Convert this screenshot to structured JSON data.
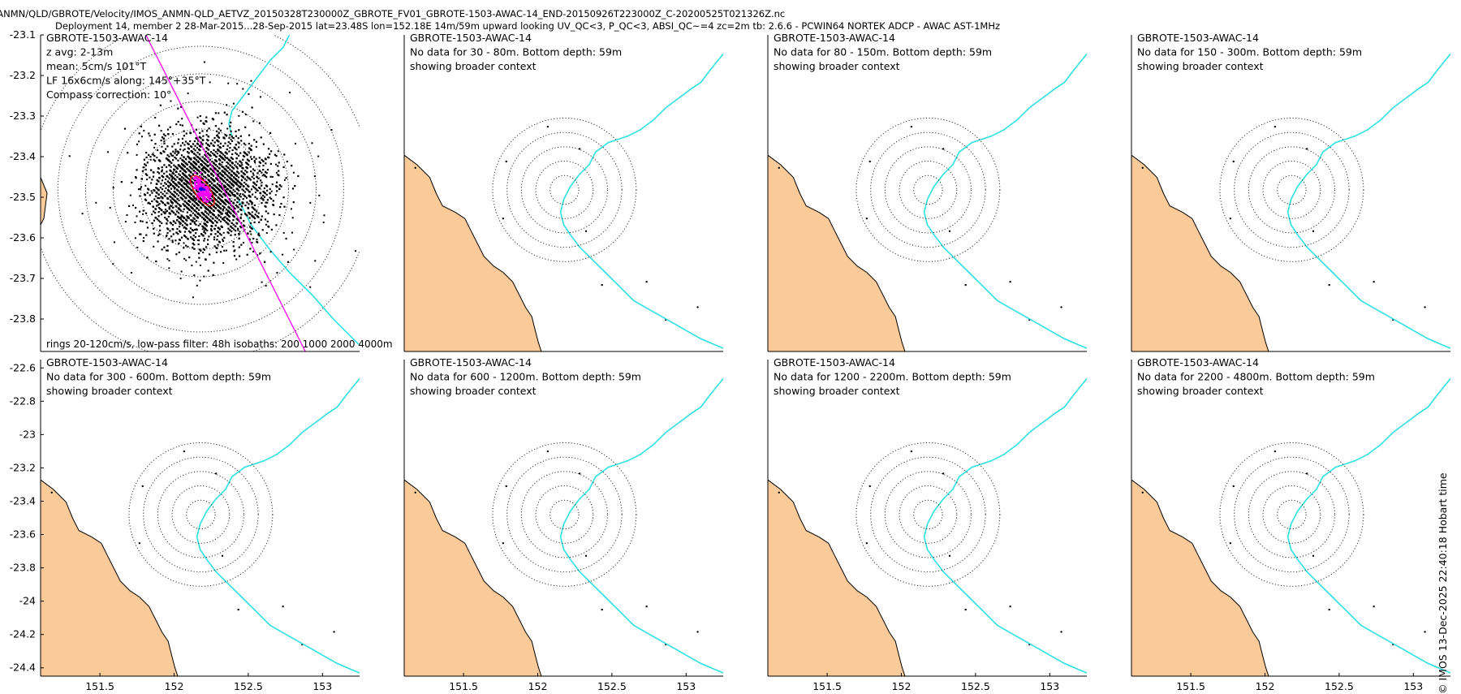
{
  "header": {
    "line1": "IMOS/ANMN/QLD/GBROTE/Velocity/IMOS_ANMN-QLD_AETVZ_20150328T230000Z_GBROTE_FV01_GBROTE-1503-AWAC-14_END-20150926T223000Z_C-20200525T021326Z.nc",
    "line2": "Deployment 14, member 2 28-Mar-2015...28-Sep-2015 lat=23.48S lon=152.18E 14m/59m upward looking UV_QC<3, P_QC<3, ABSI_QC~=4 zc=2m tb: 2.6.6 - PCWIN64 NORTEK ADCP - AWAC AST-1MHz"
  },
  "footer": "© IMOS 13-Dec-2025 22:40:18 Hobart time",
  "colors": {
    "land": "#FACB98",
    "isobath": "#2DE1E1",
    "scatter": "#000000",
    "lowpass": "#FF00FF",
    "axis_line": "#FF00FF",
    "ellipse": "#FF0000",
    "mean": "#0000FF"
  },
  "chart_data": [
    {
      "type": "scatter",
      "title": "GBROTE-1503-AWAC-14",
      "annotations": [
        "z avg: 2-13m",
        "mean: 5cm/s  101°T",
        "LF 16x6cm/s along: 145°+35°T",
        "Compass correction: 10°"
      ],
      "bottom_note": "rings 20-120cm/s, low-pass filter: 48h isobaths: 200 1000 2000 4000m",
      "xlim": [
        151.1,
        153.25
      ],
      "ylim": [
        -23.88,
        -23.1
      ],
      "yticks": [
        -23.1,
        -23.2,
        -23.3,
        -23.4,
        -23.5,
        -23.6,
        -23.7,
        -23.8
      ],
      "ytick_labels": [
        "-23.1",
        "-23.2",
        "-23.3",
        "-23.4",
        "-23.5",
        "-23.6",
        "-23.7",
        "-23.8"
      ],
      "xticks": [],
      "center": [
        152.18,
        -23.48
      ],
      "rings_cm_s": [
        20,
        40,
        60,
        80,
        100,
        120
      ]
    },
    {
      "type": "map",
      "title": "GBROTE-1503-AWAC-14",
      "annotations": [
        "No data for 30 - 80m. Bottom depth: 59m",
        "showing broader context"
      ],
      "xlim": [
        151.1,
        153.25
      ],
      "ylim": [
        -24.45,
        -22.55
      ],
      "yticks": [],
      "ytick_labels": [],
      "xticks": [],
      "center": [
        152.18,
        -23.48
      ]
    },
    {
      "type": "map",
      "title": "GBROTE-1503-AWAC-14",
      "annotations": [
        "No data for 80 - 150m. Bottom depth: 59m",
        "showing broader context"
      ],
      "xlim": [
        151.1,
        153.25
      ],
      "ylim": [
        -24.45,
        -22.55
      ],
      "yticks": [],
      "ytick_labels": [],
      "xticks": [],
      "center": [
        152.18,
        -23.48
      ]
    },
    {
      "type": "map",
      "title": "GBROTE-1503-AWAC-14",
      "annotations": [
        "No data for 150 - 300m. Bottom depth: 59m",
        "showing broader context"
      ],
      "xlim": [
        151.1,
        153.25
      ],
      "ylim": [
        -24.45,
        -22.55
      ],
      "yticks": [],
      "ytick_labels": [],
      "xticks": [],
      "center": [
        152.18,
        -23.48
      ]
    },
    {
      "type": "map",
      "title": "GBROTE-1503-AWAC-14",
      "annotations": [
        "No data for 300 - 600m. Bottom depth: 59m",
        "showing broader context"
      ],
      "xlim": [
        151.1,
        153.25
      ],
      "ylim": [
        -24.45,
        -22.55
      ],
      "yticks": [
        -22.6,
        -22.8,
        -23.0,
        -23.2,
        -23.4,
        -23.6,
        -23.8,
        -24.0,
        -24.2,
        -24.4
      ],
      "ytick_labels": [
        "-22.6",
        "-22.8",
        "-23",
        "-23.2",
        "-23.4",
        "-23.6",
        "-23.8",
        "-24",
        "-24.2",
        "-24.4"
      ],
      "xticks": [
        151.5,
        152,
        152.5,
        153
      ],
      "xtick_labels": [
        "151.5",
        "152",
        "152.5",
        "153"
      ],
      "center": [
        152.18,
        -23.48
      ]
    },
    {
      "type": "map",
      "title": "GBROTE-1503-AWAC-14",
      "annotations": [
        "No data for 600 - 1200m. Bottom depth: 59m",
        "showing broader context"
      ],
      "xlim": [
        151.1,
        153.25
      ],
      "ylim": [
        -24.45,
        -22.55
      ],
      "yticks": [],
      "ytick_labels": [],
      "xticks": [
        151.5,
        152,
        152.5,
        153
      ],
      "xtick_labels": [
        "151.5",
        "152",
        "152.5",
        "153"
      ],
      "center": [
        152.18,
        -23.48
      ]
    },
    {
      "type": "map",
      "title": "GBROTE-1503-AWAC-14",
      "annotations": [
        "No data for 1200 - 2200m. Bottom depth: 59m",
        "showing broader context"
      ],
      "xlim": [
        151.1,
        153.25
      ],
      "ylim": [
        -24.45,
        -22.55
      ],
      "yticks": [],
      "ytick_labels": [],
      "xticks": [
        151.5,
        152,
        152.5,
        153
      ],
      "xtick_labels": [
        "151.5",
        "152",
        "152.5",
        "153"
      ],
      "center": [
        152.18,
        -23.48
      ]
    },
    {
      "type": "map",
      "title": "GBROTE-1503-AWAC-14",
      "annotations": [
        "No data for 2200 - 4800m. Bottom depth: 59m",
        "showing broader context"
      ],
      "xlim": [
        151.1,
        153.25
      ],
      "ylim": [
        -24.45,
        -22.55
      ],
      "yticks": [],
      "ytick_labels": [],
      "xticks": [
        151.5,
        152,
        152.5,
        153
      ],
      "xtick_labels": [
        "151.5",
        "152",
        "152.5",
        "153"
      ],
      "center": [
        152.18,
        -23.48
      ]
    }
  ]
}
